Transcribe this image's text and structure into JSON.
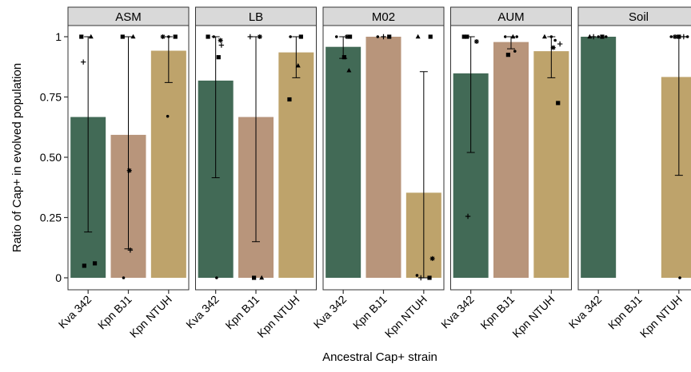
{
  "chart_data": {
    "type": "bar",
    "xlabel": "Ancestral Cap+ strain",
    "ylabel": "Ratio of Cap+ in evolved population",
    "ylim": [
      0,
      1.05
    ],
    "y_ticks": [
      {
        "value": 0,
        "label": "0"
      },
      {
        "value": 0.25,
        "label": "0.25"
      },
      {
        "value": 0.5,
        "label": "0.50"
      },
      {
        "value": 0.75,
        "label": "0.75"
      },
      {
        "value": 1,
        "label": "1"
      }
    ],
    "categories": [
      "Kva 342",
      "Kpn BJ1",
      "Kpn NTUH"
    ],
    "colors": {
      "Kva 342": "#426a56",
      "Kpn BJ1": "#b8957b",
      "Kpn NTUH": "#bea36b",
      "strip_bg": "#d9d9d9",
      "panel_border": "#333333"
    },
    "grid": false,
    "legend": "none",
    "panels": [
      {
        "label": "ASM",
        "bars": [
          {
            "category": "Kva 342",
            "value": 0.667,
            "err_low": 0.19,
            "err_high": 1.0,
            "points": [
              [
                -0.35,
                1.0,
                "square"
              ],
              [
                0.15,
                1.0,
                "triangle"
              ],
              [
                -0.25,
                0.895,
                "plus"
              ],
              [
                -0.2,
                0.05,
                "square"
              ],
              [
                0.35,
                0.06,
                "square"
              ]
            ]
          },
          {
            "category": "Kpn BJ1",
            "value": 0.593,
            "err_low": 0.12,
            "err_high": 1.0,
            "points": [
              [
                -0.3,
                1.0,
                "square"
              ],
              [
                0.25,
                1.0,
                "triangle"
              ],
              [
                0.05,
                0.445,
                "star"
              ],
              [
                0.1,
                0.115,
                "plus"
              ],
              [
                -0.25,
                0.0,
                "dot"
              ]
            ]
          },
          {
            "category": "Kpn NTUH",
            "value": 0.942,
            "err_low": 0.81,
            "err_high": 1.0,
            "points": [
              [
                -0.3,
                1.0,
                "star"
              ],
              [
                0.0,
                1.0,
                "dot"
              ],
              [
                0.35,
                1.0,
                "square"
              ],
              [
                -0.05,
                0.67,
                "dot"
              ]
            ]
          }
        ]
      },
      {
        "label": "LB",
        "bars": [
          {
            "category": "Kva 342",
            "value": 0.818,
            "err_low": 0.415,
            "err_high": 1.0,
            "points": [
              [
                -0.4,
                1.0,
                "square"
              ],
              [
                -0.1,
                1.0,
                "dot"
              ],
              [
                0.25,
                0.985,
                "star"
              ],
              [
                0.3,
                0.965,
                "plus"
              ],
              [
                0.15,
                0.915,
                "square"
              ],
              [
                0.05,
                0.0,
                "dot"
              ]
            ]
          },
          {
            "category": "Kpn BJ1",
            "value": 0.667,
            "err_low": 0.15,
            "err_high": 1.0,
            "points": [
              [
                -0.3,
                1.0,
                "plus"
              ],
              [
                0.2,
                1.0,
                "star"
              ],
              [
                0.3,
                0.0,
                "triangle"
              ],
              [
                -0.1,
                0.0,
                "square"
              ]
            ]
          },
          {
            "category": "Kpn NTUH",
            "value": 0.935,
            "err_low": 0.83,
            "err_high": 1.0,
            "points": [
              [
                -0.3,
                1.0,
                "dot"
              ],
              [
                0.25,
                1.0,
                "square"
              ],
              [
                0.1,
                0.88,
                "triangle"
              ],
              [
                -0.35,
                0.74,
                "square"
              ]
            ]
          }
        ]
      },
      {
        "label": "M02",
        "bars": [
          {
            "category": "Kva 342",
            "value": 0.958,
            "err_low": 0.91,
            "err_high": 1.0,
            "points": [
              [
                -0.35,
                1.0,
                "dot"
              ],
              [
                0.2,
                1.0,
                "star"
              ],
              [
                0.35,
                1.0,
                "square"
              ],
              [
                0.05,
                0.915,
                "square"
              ],
              [
                0.3,
                0.86,
                "triangle"
              ]
            ]
          },
          {
            "category": "Kpn BJ1",
            "value": 1.0,
            "err_low": 1.0,
            "err_high": 1.0,
            "points": [
              [
                -0.3,
                1.0,
                "dot"
              ],
              [
                0.0,
                1.0,
                "plus"
              ],
              [
                0.3,
                1.0,
                "square"
              ]
            ]
          },
          {
            "category": "Kpn NTUH",
            "value": 0.353,
            "err_low": 0.0,
            "err_high": 0.855,
            "points": [
              [
                -0.3,
                1.0,
                "triangle"
              ],
              [
                0.35,
                1.0,
                "square"
              ],
              [
                0.45,
                0.08,
                "star"
              ],
              [
                -0.35,
                0.01,
                "dot"
              ],
              [
                -0.15,
                0.0,
                "plus"
              ],
              [
                0.3,
                0.0,
                "square"
              ]
            ]
          }
        ]
      },
      {
        "label": "AUM",
        "bars": [
          {
            "category": "Kva 342",
            "value": 0.848,
            "err_low": 0.52,
            "err_high": 1.0,
            "points": [
              [
                -0.35,
                1.0,
                "square"
              ],
              [
                -0.2,
                1.0,
                "square"
              ],
              [
                0.3,
                0.98,
                "star"
              ],
              [
                -0.15,
                0.255,
                "plus"
              ]
            ]
          },
          {
            "category": "Kpn BJ1",
            "value": 0.978,
            "err_low": 0.95,
            "err_high": 1.0,
            "points": [
              [
                -0.3,
                1.0,
                "dot"
              ],
              [
                0.1,
                1.0,
                "triangle"
              ],
              [
                0.3,
                1.0,
                "dot"
              ],
              [
                -0.15,
                0.925,
                "square"
              ],
              [
                0.2,
                0.94,
                "dot"
              ]
            ]
          },
          {
            "category": "Kpn NTUH",
            "value": 0.94,
            "err_low": 0.83,
            "err_high": 1.0,
            "points": [
              [
                -0.35,
                1.0,
                "triangle"
              ],
              [
                0.0,
                1.0,
                "dot"
              ],
              [
                0.2,
                0.985,
                "dot"
              ],
              [
                0.45,
                0.97,
                "plus"
              ],
              [
                0.1,
                0.955,
                "star"
              ],
              [
                0.35,
                0.725,
                "square"
              ]
            ]
          }
        ]
      },
      {
        "label": "Soil",
        "bars": [
          {
            "category": "Kva 342",
            "value": 1.0,
            "err_low": 1.0,
            "err_high": 1.0,
            "points": [
              [
                -0.45,
                1.0,
                "triangle"
              ],
              [
                -0.25,
                1.0,
                "plus"
              ],
              [
                0.0,
                1.0,
                "dot"
              ],
              [
                0.2,
                1.0,
                "square"
              ],
              [
                0.4,
                1.0,
                "dot"
              ]
            ]
          },
          {
            "category": "Kpn BJ1",
            "value": null,
            "err_low": null,
            "err_high": null,
            "points": []
          },
          {
            "category": "Kpn NTUH",
            "value": 0.833,
            "err_low": 0.425,
            "err_high": 1.0,
            "points": [
              [
                -0.4,
                1.0,
                "dot"
              ],
              [
                -0.2,
                1.0,
                "star"
              ],
              [
                0.0,
                1.0,
                "square"
              ],
              [
                0.25,
                1.0,
                "plus"
              ],
              [
                0.45,
                1.0,
                "dot"
              ],
              [
                0.05,
                0.0,
                "dot"
              ]
            ]
          }
        ]
      }
    ]
  }
}
